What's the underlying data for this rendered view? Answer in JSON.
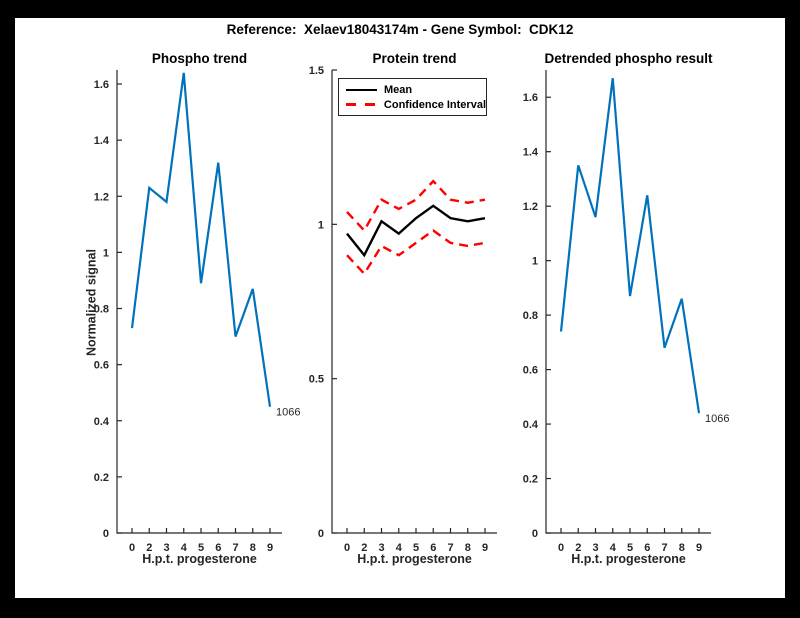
{
  "figure_title": "Reference:  Xelaev18043174m - Gene Symbol:  CDK12",
  "colors": {
    "background": "#000000",
    "canvas": "#ffffff",
    "axis": "#262626",
    "blue_line": "#0072BD",
    "red_dashed": "#ff0000",
    "black_line": "#000000"
  },
  "chart_data": [
    {
      "type": "line",
      "title": "Phospho trend",
      "xlabel": "H.p.t. progesterone",
      "ylabel": "Normalized signal",
      "x_ticklabels": [
        "0",
        "2",
        "3",
        "4",
        "5",
        "6",
        "7",
        "8",
        "9"
      ],
      "ylim": [
        0,
        1.65
      ],
      "yticks": [
        0,
        0.2,
        0.4,
        0.6,
        0.8,
        1,
        1.2,
        1.4,
        1.6
      ],
      "grid": false,
      "legend": null,
      "series": [
        {
          "name": "phospho-signal",
          "color": "#0072BD",
          "dash": false,
          "width": 2.2,
          "values": [
            0.73,
            1.23,
            1.18,
            1.64,
            0.89,
            1.32,
            0.7,
            0.87,
            0.45
          ]
        }
      ],
      "annotation": {
        "text": "1066",
        "series": 0,
        "point_index": 8
      }
    },
    {
      "type": "line",
      "title": "Protein trend",
      "xlabel": "H.p.t. progesterone",
      "ylabel": "",
      "x_ticklabels": [
        "0",
        "2",
        "3",
        "4",
        "5",
        "6",
        "7",
        "8",
        "9"
      ],
      "ylim": [
        0,
        1.5
      ],
      "yticks": [
        0,
        0.5,
        1,
        1.5
      ],
      "grid": false,
      "legend": {
        "position": "top-left",
        "entries": [
          {
            "label": "Mean",
            "color": "#000000",
            "dash": false
          },
          {
            "label": "Confidence Interval",
            "color": "#ff0000",
            "dash": true
          }
        ]
      },
      "series": [
        {
          "name": "mean",
          "color": "#000000",
          "dash": false,
          "width": 2.4,
          "values": [
            0.97,
            0.9,
            1.01,
            0.97,
            1.02,
            1.06,
            1.02,
            1.01,
            1.02
          ]
        },
        {
          "name": "confidence-interval-upper",
          "color": "#ff0000",
          "dash": true,
          "width": 2.4,
          "values": [
            1.04,
            0.98,
            1.08,
            1.05,
            1.08,
            1.14,
            1.08,
            1.07,
            1.08
          ]
        },
        {
          "name": "confidence-interval-lower",
          "color": "#ff0000",
          "dash": true,
          "width": 2.4,
          "values": [
            0.9,
            0.84,
            0.93,
            0.9,
            0.94,
            0.98,
            0.94,
            0.93,
            0.94
          ]
        }
      ],
      "annotation": null
    },
    {
      "type": "line",
      "title": "Detrended phospho result",
      "xlabel": "H.p.t. progesterone",
      "ylabel": "",
      "x_ticklabels": [
        "0",
        "2",
        "3",
        "4",
        "5",
        "6",
        "7",
        "8",
        "9"
      ],
      "ylim": [
        0,
        1.7
      ],
      "yticks": [
        0,
        0.2,
        0.4,
        0.6,
        0.8,
        1,
        1.2,
        1.4,
        1.6
      ],
      "grid": false,
      "legend": null,
      "series": [
        {
          "name": "detrended-phospho-signal",
          "color": "#0072BD",
          "dash": false,
          "width": 2.2,
          "values": [
            0.74,
            1.35,
            1.16,
            1.67,
            0.87,
            1.24,
            0.68,
            0.86,
            0.44
          ]
        }
      ],
      "annotation": {
        "text": "1066",
        "series": 0,
        "point_index": 8
      }
    }
  ]
}
